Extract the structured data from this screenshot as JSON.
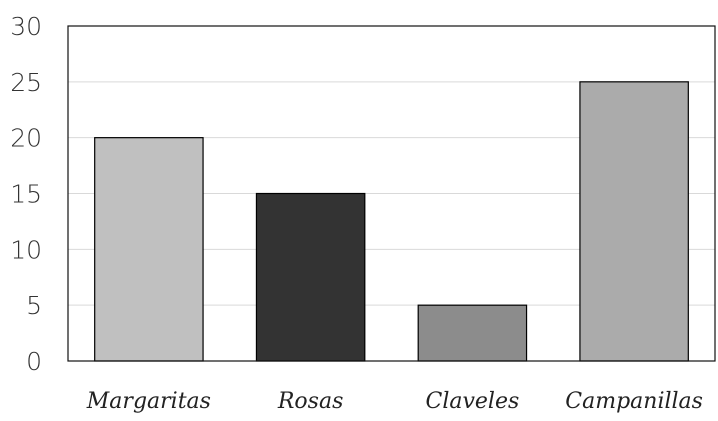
{
  "chart_data": {
    "type": "bar",
    "title": "",
    "xlabel": "",
    "ylabel": "",
    "categories": [
      "Margaritas",
      "Rosas",
      "Claveles",
      "Campanillas"
    ],
    "values": [
      20,
      15,
      5,
      25
    ],
    "colors": [
      "#c0c0c0",
      "#333333",
      "#8c8c8c",
      "#ababab"
    ],
    "ylim": [
      0,
      30
    ],
    "yticks": [
      0,
      5,
      10,
      15,
      20,
      25,
      30
    ],
    "grid": true,
    "legend": "none"
  }
}
